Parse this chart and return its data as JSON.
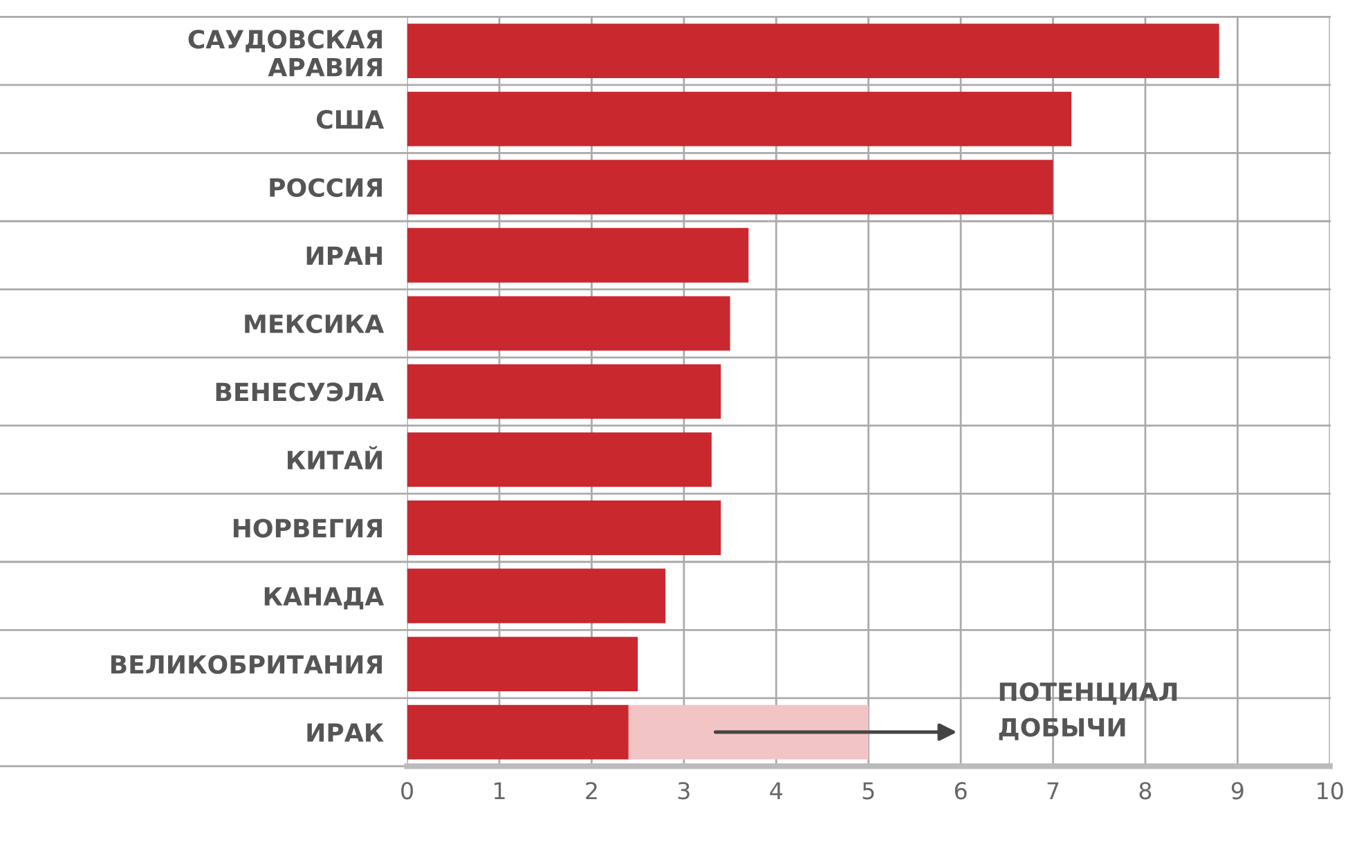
{
  "chart_data": {
    "type": "bar",
    "orientation": "horizontal",
    "stacked": true,
    "categories": [
      "САУДОВСКАЯ\nАРАВИЯ",
      "США",
      "РОССИЯ",
      "ИРАН",
      "МЕКСИКА",
      "ВЕНЕСУЭЛА",
      "КИТАЙ",
      "НОРВЕГИЯ",
      "КАНАДА",
      "ВЕЛИКОБРИТАНИЯ",
      "ИРАК"
    ],
    "series": [
      {
        "color": "#c9282f",
        "values": [
          8.8,
          7.2,
          7.0,
          3.7,
          3.5,
          3.4,
          3.3,
          3.4,
          2.8,
          2.5,
          2.4
        ]
      },
      {
        "name": "ПОТЕНЦИАЛ\nДОБЫЧИ",
        "color": "#f3c4c6",
        "values": [
          null,
          null,
          null,
          null,
          null,
          null,
          null,
          null,
          null,
          null,
          2.6
        ]
      }
    ],
    "xlim": [
      0,
      10
    ],
    "xticks": [
      0,
      1,
      2,
      3,
      4,
      5,
      6,
      7,
      8,
      9,
      10
    ],
    "grid": true
  }
}
